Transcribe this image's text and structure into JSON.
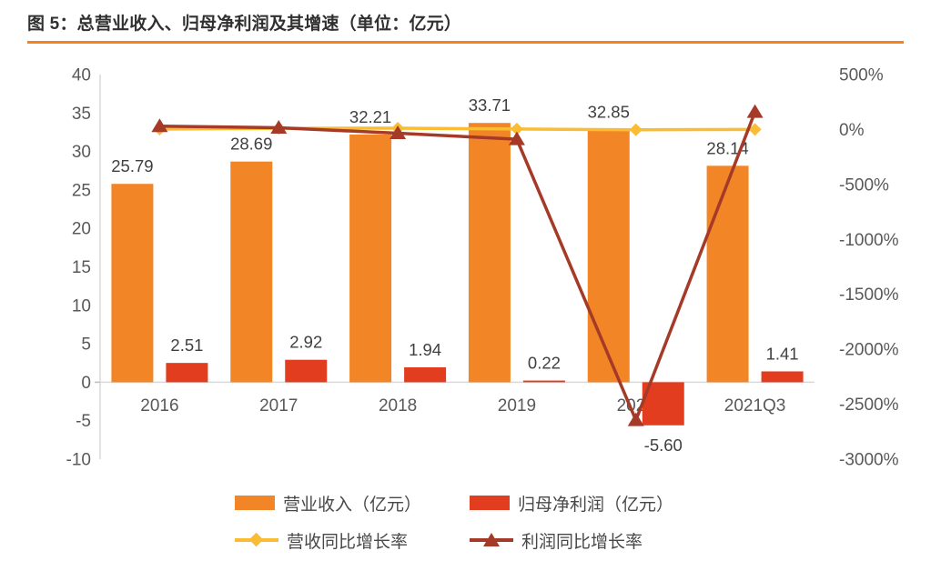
{
  "header": {
    "title": "图 5：总营业收入、归母净利润及其增速（单位：亿元）"
  },
  "colors": {
    "accent_rule": "#F5821F",
    "revenue_bar": "#F28627",
    "profit_bar": "#E23D1E",
    "revenue_growth_line": "#F9BC33",
    "profit_growth_line": "#A63A28",
    "axis_text": "#595959",
    "data_label_text": "#404040",
    "grid": "#D9D9D9",
    "title_text": "#303030"
  },
  "chart_data": {
    "type": "bar",
    "subtype": "combo-bar-line-dual-axis",
    "title": "图 5：总营业收入、归母净利润及其增速（单位：亿元）",
    "xlabel": "",
    "ylabel_left": "",
    "ylabel_right": "",
    "grid": "zero-line-only",
    "legend_position": "bottom",
    "categories": [
      "2016",
      "2017",
      "2018",
      "2019",
      "2020",
      "2021Q3"
    ],
    "bar_series": [
      {
        "name": "营业收入（亿元）",
        "axis": "left",
        "color_key": "revenue_bar",
        "values": [
          25.79,
          28.69,
          32.21,
          33.71,
          32.85,
          28.14
        ],
        "labels": [
          "25.79",
          "28.69",
          "32.21",
          "33.71",
          "32.85",
          "28.14"
        ]
      },
      {
        "name": "归母净利润（亿元）",
        "axis": "left",
        "color_key": "profit_bar",
        "values": [
          2.51,
          2.92,
          1.94,
          0.22,
          -5.6,
          1.41
        ],
        "labels": [
          "2.51",
          "2.92",
          "1.94",
          "0.22",
          "-5.60",
          "1.41"
        ]
      }
    ],
    "line_series": [
      {
        "name": "营收同比增长率",
        "axis": "right",
        "marker": "diamond",
        "color_key": "revenue_growth_line",
        "values_pct": [
          3.6,
          11.2,
          12.3,
          4.7,
          -2.6,
          0.5
        ]
      },
      {
        "name": "利润同比增长率",
        "axis": "right",
        "marker": "triangle",
        "color_key": "profit_growth_line",
        "values_pct": [
          30,
          16.3,
          -33.6,
          -88.7,
          -2645.5,
          160
        ]
      }
    ],
    "left_axis": {
      "min": -10,
      "max": 40,
      "step": 5,
      "tick_labels": [
        "40",
        "35",
        "30",
        "25",
        "20",
        "15",
        "10",
        "5",
        "0",
        "-5",
        "-10"
      ]
    },
    "right_axis": {
      "min": -3000,
      "max": 500,
      "step": 500,
      "tick_values": [
        500,
        0,
        -500,
        -1000,
        -1500,
        -2000,
        -2500,
        -3000
      ],
      "tick_labels": [
        "500%",
        "0%",
        "-500%",
        "-1000%",
        "-1500%",
        "-2000%",
        "-2500%",
        "-3000%"
      ]
    }
  },
  "legend": {
    "items": [
      {
        "label": "营业收入（亿元）",
        "swatch": "bar",
        "color_key": "revenue_bar"
      },
      {
        "label": "归母净利润（亿元）",
        "swatch": "bar",
        "color_key": "profit_bar"
      },
      {
        "label": "营收同比增长率",
        "swatch": "line-diamond",
        "color_key": "revenue_growth_line"
      },
      {
        "label": "利润同比增长率",
        "swatch": "line-triangle",
        "color_key": "profit_growth_line"
      }
    ]
  }
}
